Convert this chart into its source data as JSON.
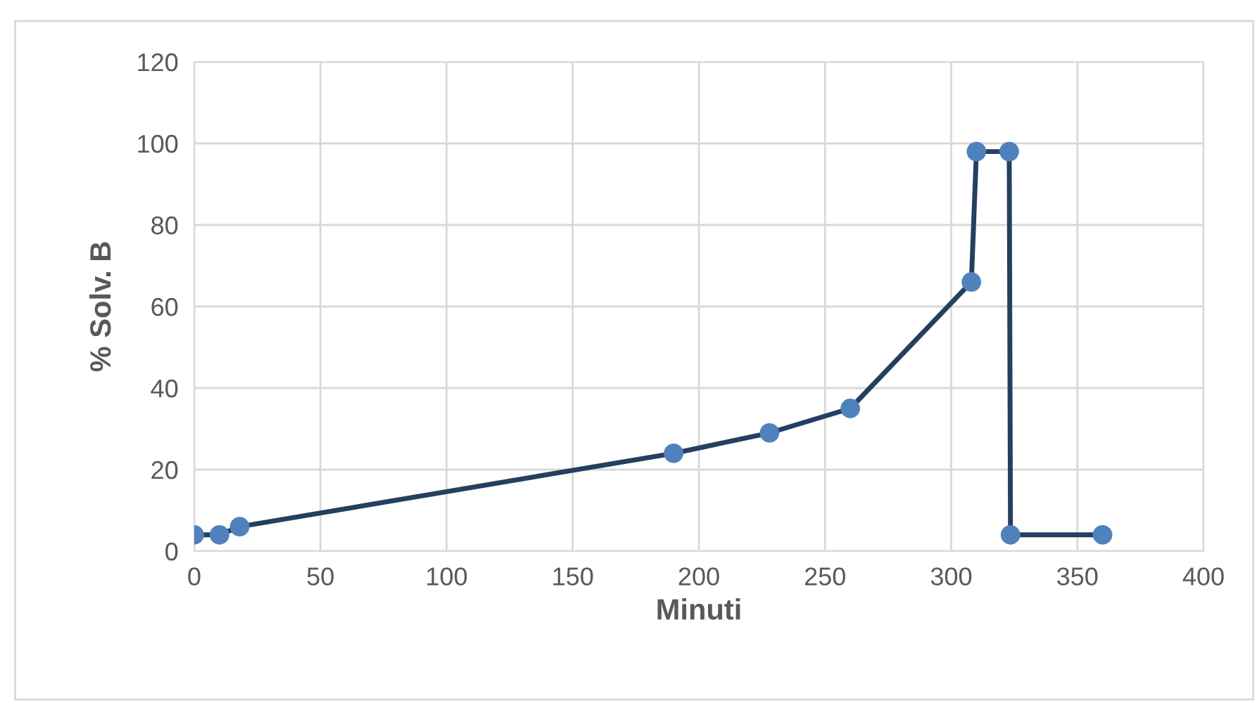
{
  "chart_data": {
    "type": "line",
    "xlabel": "Minuti",
    "ylabel": "% Solv. B",
    "xlim": [
      0,
      400
    ],
    "ylim": [
      0,
      120
    ],
    "xticks": [
      0,
      50,
      100,
      150,
      200,
      250,
      300,
      350,
      400
    ],
    "yticks": [
      0,
      20,
      40,
      60,
      80,
      100,
      120
    ],
    "grid": true,
    "marker": "circle",
    "line_style": "solid",
    "series": [
      {
        "color": "#243f60",
        "colors": [
          "#4f81bd",
          "#4f81bd",
          "#4f81bd",
          "#4f81bd",
          "#4f81bd",
          "#4f81bd",
          "#4f81bd",
          "#4f81bd",
          "#4f81bd",
          "#4f81bd",
          "#4f81bd"
        ],
        "x": [
          0,
          10,
          18,
          190,
          228,
          260,
          308,
          310,
          323,
          323.5,
          360
        ],
        "values": [
          4,
          4,
          6,
          24,
          29,
          35,
          66,
          98,
          98,
          4,
          4
        ]
      }
    ]
  }
}
